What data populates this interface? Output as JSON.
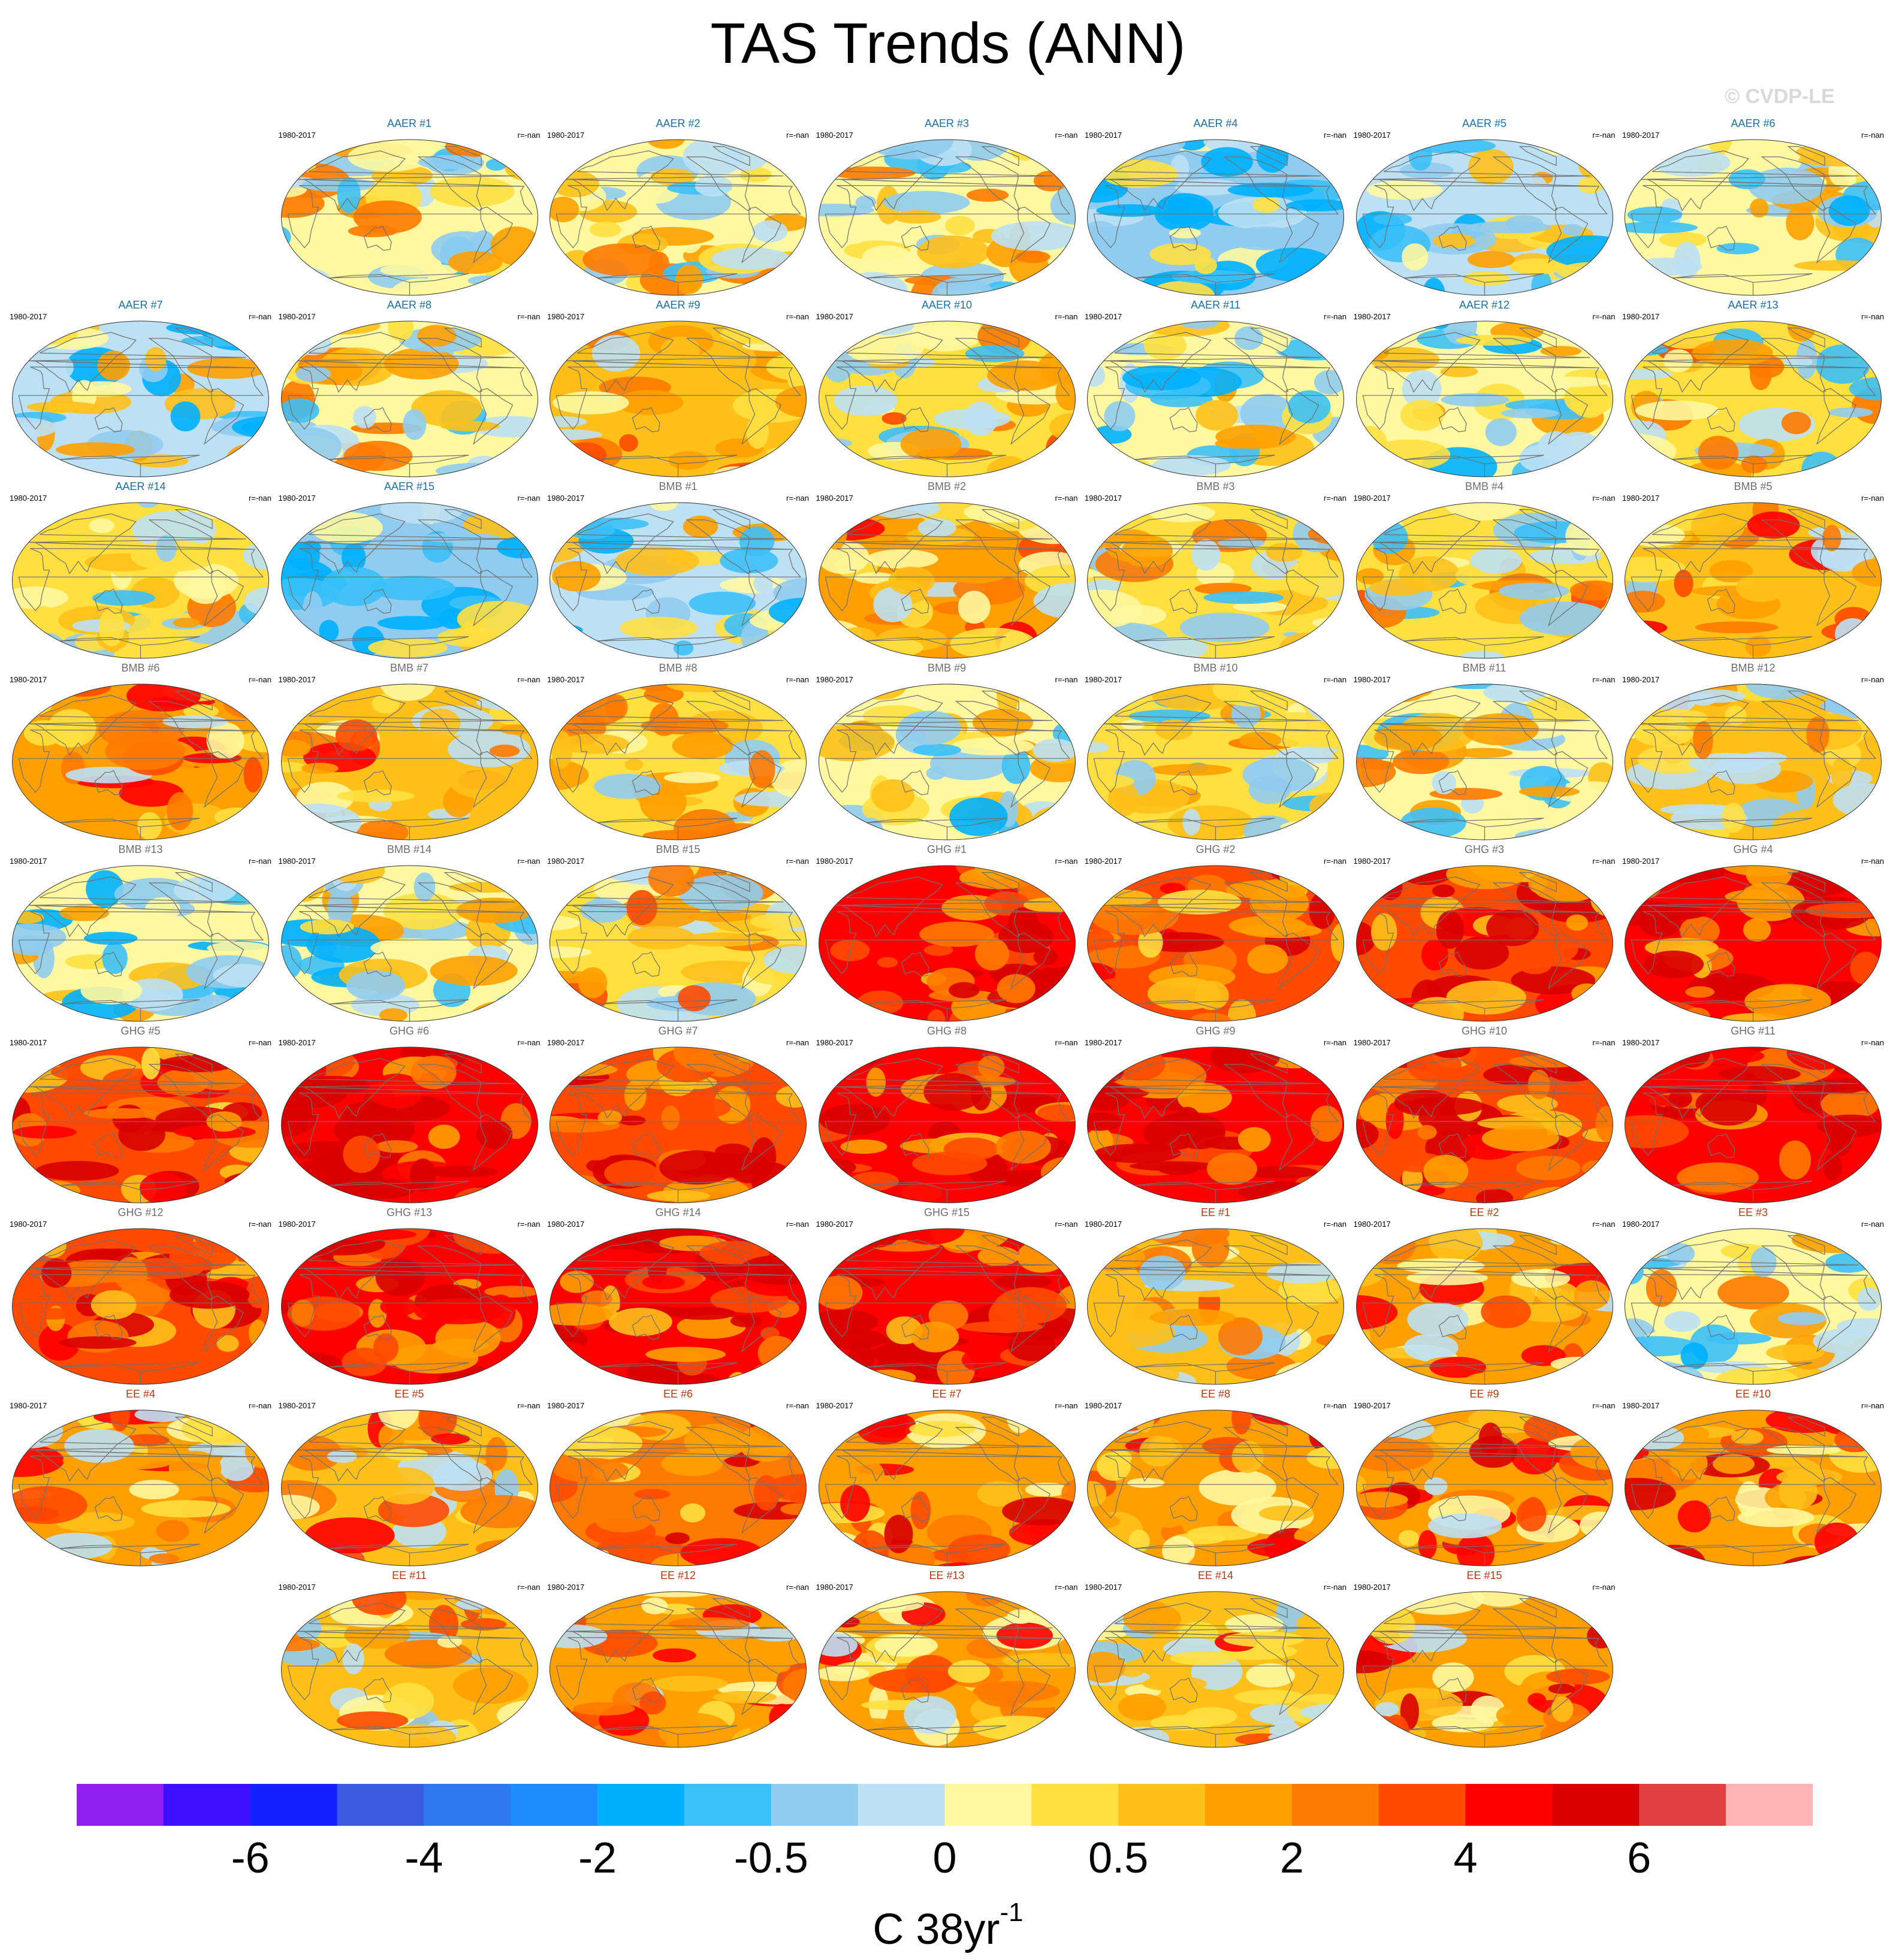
{
  "title": "TAS Trends (ANN)",
  "watermark": "© CVDP-LE",
  "period": "1980-2017",
  "corr": "r=-nan",
  "panels": [
    {
      "label": "AAER #1",
      "group": "AAER",
      "warm": 0.4
    },
    {
      "label": "AAER #2",
      "group": "AAER",
      "warm": 0.4
    },
    {
      "label": "AAER #3",
      "group": "AAER",
      "warm": 0.4
    },
    {
      "label": "AAER #4",
      "group": "AAER",
      "warm": 0.15
    },
    {
      "label": "AAER #5",
      "group": "AAER",
      "warm": 0.3
    },
    {
      "label": "AAER #6",
      "group": "AAER",
      "warm": 0.35
    },
    {
      "label": "AAER #7",
      "group": "AAER",
      "warm": 0.3
    },
    {
      "label": "AAER #8",
      "group": "AAER",
      "warm": 0.4
    },
    {
      "label": "AAER #9",
      "group": "AAER",
      "warm": 0.5
    },
    {
      "label": "AAER #10",
      "group": "AAER",
      "warm": 0.45
    },
    {
      "label": "AAER #11",
      "group": "AAER",
      "warm": 0.35
    },
    {
      "label": "AAER #12",
      "group": "AAER",
      "warm": 0.35
    },
    {
      "label": "AAER #13",
      "group": "AAER",
      "warm": 0.45
    },
    {
      "label": "AAER #14",
      "group": "AAER",
      "warm": 0.45
    },
    {
      "label": "AAER #15",
      "group": "AAER",
      "warm": 0.2
    },
    {
      "label": "BMB #1",
      "group": "BMB",
      "warm": 0.3
    },
    {
      "label": "BMB #2",
      "group": "BMB",
      "warm": 0.6
    },
    {
      "label": "BMB #3",
      "group": "BMB",
      "warm": 0.45
    },
    {
      "label": "BMB #4",
      "group": "BMB",
      "warm": 0.45
    },
    {
      "label": "BMB #5",
      "group": "BMB",
      "warm": 0.55
    },
    {
      "label": "BMB #6",
      "group": "BMB",
      "warm": 0.6
    },
    {
      "label": "BMB #7",
      "group": "BMB",
      "warm": 0.55
    },
    {
      "label": "BMB #8",
      "group": "BMB",
      "warm": 0.45
    },
    {
      "label": "BMB #9",
      "group": "BMB",
      "warm": 0.35
    },
    {
      "label": "BMB #10",
      "group": "BMB",
      "warm": 0.45
    },
    {
      "label": "BMB #11",
      "group": "BMB",
      "warm": 0.4
    },
    {
      "label": "BMB #12",
      "group": "BMB",
      "warm": 0.5
    },
    {
      "label": "BMB #13",
      "group": "BMB",
      "warm": 0.35
    },
    {
      "label": "BMB #14",
      "group": "BMB",
      "warm": 0.35
    },
    {
      "label": "BMB #15",
      "group": "BMB",
      "warm": 0.45
    },
    {
      "label": "GHG #1",
      "group": "GHG",
      "warm": 0.9
    },
    {
      "label": "GHG #2",
      "group": "GHG",
      "warm": 0.8
    },
    {
      "label": "GHG #3",
      "group": "GHG",
      "warm": 0.85
    },
    {
      "label": "GHG #4",
      "group": "GHG",
      "warm": 0.9
    },
    {
      "label": "GHG #5",
      "group": "GHG",
      "warm": 0.8
    },
    {
      "label": "GHG #6",
      "group": "GHG",
      "warm": 0.95
    },
    {
      "label": "GHG #7",
      "group": "GHG",
      "warm": 0.85
    },
    {
      "label": "GHG #8",
      "group": "GHG",
      "warm": 0.9
    },
    {
      "label": "GHG #9",
      "group": "GHG",
      "warm": 0.95
    },
    {
      "label": "GHG #10",
      "group": "GHG",
      "warm": 0.85
    },
    {
      "label": "GHG #11",
      "group": "GHG",
      "warm": 0.95
    },
    {
      "label": "GHG #12",
      "group": "GHG",
      "warm": 0.85
    },
    {
      "label": "GHG #13",
      "group": "GHG",
      "warm": 0.95
    },
    {
      "label": "GHG #14",
      "group": "GHG",
      "warm": 0.9
    },
    {
      "label": "GHG #15",
      "group": "GHG",
      "warm": 0.9
    },
    {
      "label": "EE #1",
      "group": "EE",
      "warm": 0.5
    },
    {
      "label": "EE #2",
      "group": "EE",
      "warm": 0.6
    },
    {
      "label": "EE #3",
      "group": "EE",
      "warm": 0.35
    },
    {
      "label": "EE #4",
      "group": "EE",
      "warm": 0.6
    },
    {
      "label": "EE #5",
      "group": "EE",
      "warm": 0.55
    },
    {
      "label": "EE #6",
      "group": "EE",
      "warm": 0.7
    },
    {
      "label": "EE #7",
      "group": "EE",
      "warm": 0.65
    },
    {
      "label": "EE #8",
      "group": "EE",
      "warm": 0.65
    },
    {
      "label": "EE #9",
      "group": "EE",
      "warm": 0.65
    },
    {
      "label": "EE #10",
      "group": "EE",
      "warm": 0.65
    },
    {
      "label": "EE #11",
      "group": "EE",
      "warm": 0.5
    },
    {
      "label": "EE #12",
      "group": "EE",
      "warm": 0.6
    },
    {
      "label": "EE #13",
      "group": "EE",
      "warm": 0.65
    },
    {
      "label": "EE #14",
      "group": "EE",
      "warm": 0.55
    },
    {
      "label": "EE #15",
      "group": "EE",
      "warm": 0.65
    }
  ],
  "group_colors": {
    "AAER": "#1a6fa0",
    "BMB": "#6e6e6e",
    "GHG": "#6e6e6e",
    "EE": "#b23a10"
  },
  "colorbar": {
    "colors": [
      "#8f20f0",
      "#3c10ff",
      "#1420ff",
      "#3a5ae0",
      "#2d78ee",
      "#1e8cff",
      "#00b0ff",
      "#3cc0f8",
      "#90ccf0",
      "#bce0f4",
      "#fef8a0",
      "#ffe040",
      "#ffc01a",
      "#ffa000",
      "#ff7a00",
      "#ff4a00",
      "#ff0000",
      "#d80000",
      "#e04040",
      "#ffb4b4"
    ],
    "tick_labels": [
      "-6",
      "-4",
      "-2",
      "-0.5",
      "0",
      "0.5",
      "2",
      "4",
      "6"
    ],
    "units": "C 38yr",
    "units_sup": "-1"
  }
}
